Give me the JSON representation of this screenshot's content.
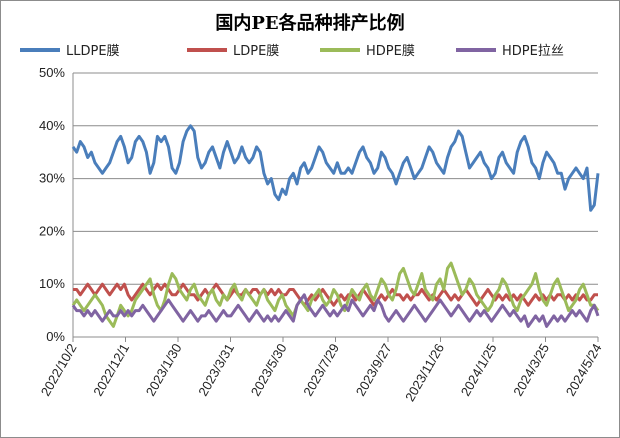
{
  "chart_data": {
    "type": "line",
    "title": "国内PE各品种排产比例",
    "xlabel": "",
    "ylabel": "",
    "ylim": [
      0,
      50
    ],
    "yticks": [
      "0%",
      "10%",
      "20%",
      "30%",
      "40%",
      "50%"
    ],
    "x_tick_labels": [
      "2022/10/2",
      "2022/12/1",
      "2023/1/30",
      "2023/3/31",
      "2023/5/30",
      "2023/7/29",
      "2023/9/27",
      "2023/11/26",
      "2024/1/25",
      "2024/3/25",
      "2024/5/24"
    ],
    "grid": "horizontal",
    "legend_position": "top",
    "series": [
      {
        "name": "LLDPE膜",
        "color": "#4a7ebb",
        "values": [
          36,
          35,
          37,
          36,
          34,
          35,
          33,
          32,
          31,
          32,
          33,
          35,
          37,
          38,
          36,
          33,
          34,
          37,
          38,
          37,
          35,
          31,
          33,
          38,
          37,
          38,
          36,
          32,
          31,
          33,
          37,
          39,
          40,
          39,
          34,
          32,
          33,
          35,
          36,
          34,
          32,
          35,
          37,
          35,
          33,
          34,
          36,
          34,
          33,
          34,
          36,
          35,
          31,
          29,
          30,
          27,
          26,
          28,
          27,
          30,
          31,
          29,
          32,
          33,
          31,
          32,
          34,
          36,
          35,
          33,
          32,
          31,
          33,
          31,
          31,
          32,
          31,
          33,
          35,
          36,
          34,
          33,
          31,
          32,
          35,
          34,
          32,
          31,
          29,
          31,
          33,
          34,
          32,
          30,
          31,
          32,
          34,
          36,
          35,
          33,
          32,
          31,
          34,
          36,
          37,
          39,
          38,
          35,
          32,
          33,
          34,
          35,
          33,
          32,
          30,
          31,
          34,
          35,
          33,
          32,
          31,
          35,
          37,
          38,
          36,
          33,
          32,
          30,
          33,
          35,
          34,
          33,
          31,
          31,
          28,
          30,
          31,
          32,
          31,
          30,
          32,
          24,
          25,
          31
        ]
      },
      {
        "name": "LDPE膜",
        "color": "#c0504d",
        "values": [
          9,
          9,
          8,
          9,
          10,
          9,
          8,
          9,
          10,
          9,
          8,
          9,
          10,
          9,
          10,
          8,
          7,
          8,
          9,
          10,
          9,
          8,
          9,
          10,
          9,
          10,
          9,
          8,
          8,
          9,
          10,
          9,
          8,
          8,
          7,
          8,
          9,
          8,
          9,
          10,
          9,
          8,
          7,
          8,
          9,
          8,
          8,
          9,
          8,
          9,
          9,
          8,
          9,
          8,
          9,
          8,
          9,
          8,
          8,
          9,
          9,
          8,
          7,
          6,
          7,
          8,
          7,
          8,
          9,
          8,
          7,
          6,
          7,
          8,
          7,
          8,
          8,
          7,
          8,
          9,
          8,
          7,
          6,
          7,
          8,
          7,
          8,
          9,
          8,
          8,
          7,
          8,
          7,
          8,
          8,
          9,
          8,
          7,
          8,
          7,
          8,
          9,
          8,
          7,
          8,
          7,
          8,
          9,
          8,
          7,
          6,
          7,
          8,
          9,
          8,
          7,
          8,
          7,
          8,
          7,
          8,
          7,
          8,
          7,
          6,
          7,
          8,
          7,
          8,
          7,
          8,
          7,
          8,
          8,
          7,
          8,
          7,
          8,
          7,
          8,
          7,
          7,
          8,
          8
        ]
      },
      {
        "name": "HDPE膜",
        "color": "#9bbb59",
        "values": [
          6,
          7,
          6,
          5,
          6,
          7,
          8,
          7,
          6,
          4,
          3,
          2,
          4,
          6,
          5,
          4,
          5,
          7,
          8,
          9,
          10,
          11,
          8,
          6,
          5,
          7,
          10,
          12,
          11,
          9,
          8,
          7,
          9,
          10,
          8,
          7,
          6,
          8,
          9,
          7,
          6,
          8,
          7,
          9,
          10,
          8,
          7,
          9,
          8,
          7,
          6,
          8,
          9,
          7,
          6,
          5,
          7,
          8,
          6,
          5,
          4,
          6,
          7,
          6,
          5,
          7,
          8,
          9,
          7,
          6,
          7,
          9,
          8,
          6,
          5,
          7,
          9,
          8,
          7,
          9,
          10,
          8,
          7,
          9,
          11,
          10,
          8,
          7,
          9,
          12,
          13,
          11,
          9,
          8,
          10,
          12,
          9,
          8,
          7,
          10,
          11,
          9,
          13,
          14,
          12,
          10,
          8,
          9,
          11,
          10,
          8,
          7,
          6,
          5,
          6,
          8,
          9,
          11,
          10,
          8,
          6,
          5,
          7,
          8,
          9,
          10,
          12,
          9,
          7,
          6,
          8,
          10,
          11,
          9,
          7,
          5,
          6,
          7,
          9,
          10,
          8,
          6,
          6,
          5
        ]
      },
      {
        "name": "HDPE拉丝",
        "color": "#8064a2",
        "values": [
          6,
          5,
          5,
          4,
          5,
          4,
          5,
          4,
          3,
          4,
          5,
          4,
          4,
          5,
          4,
          5,
          4,
          5,
          5,
          6,
          5,
          4,
          3,
          4,
          5,
          6,
          7,
          6,
          5,
          4,
          3,
          4,
          5,
          4,
          3,
          4,
          4,
          5,
          4,
          3,
          4,
          5,
          4,
          4,
          5,
          6,
          5,
          4,
          3,
          4,
          5,
          4,
          3,
          4,
          3,
          4,
          3,
          4,
          5,
          4,
          3,
          6,
          7,
          8,
          6,
          5,
          4,
          5,
          6,
          5,
          4,
          5,
          4,
          5,
          6,
          5,
          7,
          6,
          5,
          4,
          5,
          6,
          5,
          7,
          6,
          4,
          3,
          4,
          5,
          4,
          3,
          4,
          5,
          6,
          5,
          4,
          3,
          4,
          5,
          6,
          7,
          6,
          5,
          4,
          5,
          6,
          5,
          4,
          3,
          4,
          5,
          4,
          5,
          4,
          3,
          4,
          5,
          6,
          5,
          4,
          5,
          4,
          3,
          4,
          2,
          3,
          4,
          3,
          4,
          2,
          3,
          4,
          3,
          4,
          3,
          4,
          5,
          4,
          5,
          4,
          3,
          5,
          6,
          4
        ]
      }
    ]
  }
}
